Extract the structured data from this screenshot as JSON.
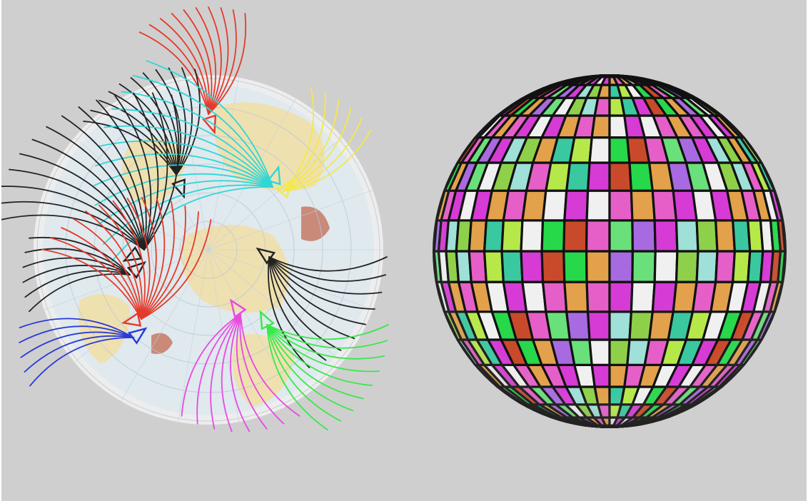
{
  "figure": {
    "left_panel": "map",
    "right_panel": "tiled-sphere"
  },
  "colors": {
    "background": "#cfcfcf",
    "map_ocean": "#dfe9ee",
    "map_land": "#efe0b0",
    "map_rim": "#eeeeee",
    "tile_border": "#111111"
  },
  "tile_palette": [
    "#27d84a",
    "#d63bd6",
    "#b7e84a",
    "#6ae07a",
    "#e2a14a",
    "#c94a2a",
    "#9fe0d8",
    "#f0f0f0",
    "#a86ae0",
    "#3ac8a0",
    "#e65fc8",
    "#8fd04a"
  ],
  "fans": [
    {
      "name": "red-top",
      "color": "#e53a2a",
      "glyph": "triangle-icon"
    },
    {
      "name": "black-top",
      "color": "#222222",
      "glyph": "triangle-icon"
    },
    {
      "name": "cyan",
      "color": "#2fd6d6",
      "glyph": "triangle-icon"
    },
    {
      "name": "yellow",
      "color": "#f3e94a",
      "glyph": "triangle-icon"
    },
    {
      "name": "black-mid-left",
      "color": "#222222",
      "glyph": "triangle-icon"
    },
    {
      "name": "black-left",
      "color": "#222222",
      "glyph": "triangle-icon"
    },
    {
      "name": "red-mid",
      "color": "#e53a2a",
      "glyph": "triangle-icon"
    },
    {
      "name": "blue",
      "color": "#2a3ad6",
      "glyph": "triangle-icon"
    },
    {
      "name": "black-right",
      "color": "#222222",
      "glyph": "triangle-icon"
    },
    {
      "name": "magenta",
      "color": "#e84ae0",
      "glyph": "triangle-icon"
    },
    {
      "name": "green",
      "color": "#3ae84a",
      "glyph": "triangle-icon"
    }
  ]
}
